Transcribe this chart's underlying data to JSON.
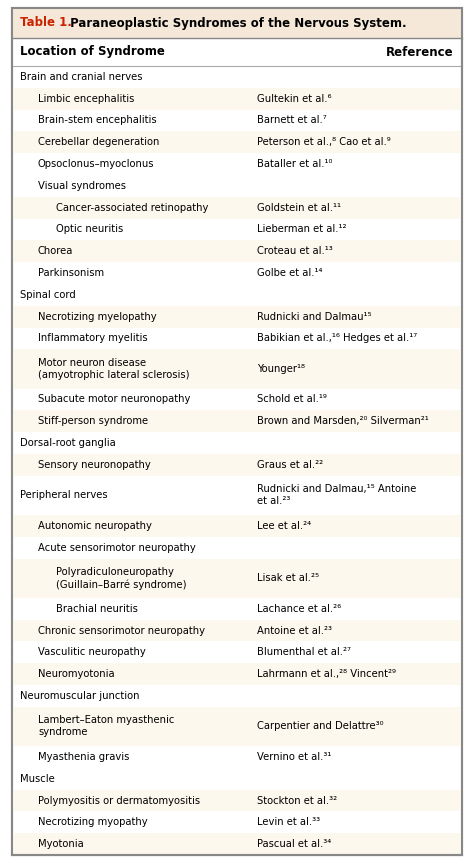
{
  "title_red": "Table 1.",
  "title_black": " Paraneoplastic Syndromes of the Nervous System.",
  "header_left": "Location of Syndrome",
  "header_right": "Reference",
  "bg_color": "#fdf8ee",
  "title_bg": "#f5e8d8",
  "border_color": "#999999",
  "title_red_color": "#cc2200",
  "rows": [
    {
      "indent": 0,
      "left": "Brain and cranial nerves",
      "right": "",
      "shaded": false
    },
    {
      "indent": 1,
      "left": "Limbic encephalitis",
      "right": "Gultekin et al.⁶",
      "shaded": true
    },
    {
      "indent": 1,
      "left": "Brain-stem encephalitis",
      "right": "Barnett et al.⁷",
      "shaded": false
    },
    {
      "indent": 1,
      "left": "Cerebellar degeneration",
      "right": "Peterson et al.,⁸ Cao et al.⁹",
      "shaded": true
    },
    {
      "indent": 1,
      "left": "Opsoclonus–myoclonus",
      "right": "Bataller et al.¹⁰",
      "shaded": false
    },
    {
      "indent": 1,
      "left": "Visual syndromes",
      "right": "",
      "shaded": false
    },
    {
      "indent": 2,
      "left": "Cancer-associated retinopathy",
      "right": "Goldstein et al.¹¹",
      "shaded": true
    },
    {
      "indent": 2,
      "left": "Optic neuritis",
      "right": "Lieberman et al.¹²",
      "shaded": false
    },
    {
      "indent": 1,
      "left": "Chorea",
      "right": "Croteau et al.¹³",
      "shaded": true
    },
    {
      "indent": 1,
      "left": "Parkinsonism",
      "right": "Golbe et al.¹⁴",
      "shaded": false
    },
    {
      "indent": 0,
      "left": "Spinal cord",
      "right": "",
      "shaded": false
    },
    {
      "indent": 1,
      "left": "Necrotizing myelopathy",
      "right": "Rudnicki and Dalmau¹⁵",
      "shaded": true
    },
    {
      "indent": 1,
      "left": "Inflammatory myelitis",
      "right": "Babikian et al.,¹⁶ Hedges et al.¹⁷",
      "shaded": false
    },
    {
      "indent": 1,
      "left": "Motor neuron disease\n(amyotrophic lateral sclerosis)",
      "right": "Younger¹⁸",
      "shaded": true
    },
    {
      "indent": 1,
      "left": "Subacute motor neuronopathy",
      "right": "Schold et al.¹⁹",
      "shaded": false
    },
    {
      "indent": 1,
      "left": "Stiff-person syndrome",
      "right": "Brown and Marsden,²⁰ Silverman²¹",
      "shaded": true
    },
    {
      "indent": 0,
      "left": "Dorsal-root ganglia",
      "right": "",
      "shaded": false
    },
    {
      "indent": 1,
      "left": "Sensory neuronopathy",
      "right": "Graus et al.²²",
      "shaded": true
    },
    {
      "indent": 0,
      "left": "Peripheral nerves",
      "right": "Rudnicki and Dalmau,¹⁵ Antoine\net al.²³",
      "shaded": false
    },
    {
      "indent": 1,
      "left": "Autonomic neuropathy",
      "right": "Lee et al.²⁴",
      "shaded": true
    },
    {
      "indent": 1,
      "left": "Acute sensorimotor neuropathy",
      "right": "",
      "shaded": false
    },
    {
      "indent": 2,
      "left": "Polyradiculoneuropathy\n(Guillain–Barré syndrome)",
      "right": "Lisak et al.²⁵",
      "shaded": true
    },
    {
      "indent": 2,
      "left": "Brachial neuritis",
      "right": "Lachance et al.²⁶",
      "shaded": false
    },
    {
      "indent": 1,
      "left": "Chronic sensorimotor neuropathy",
      "right": "Antoine et al.²³",
      "shaded": true
    },
    {
      "indent": 1,
      "left": "Vasculitic neuropathy",
      "right": "Blumenthal et al.²⁷",
      "shaded": false
    },
    {
      "indent": 1,
      "left": "Neuromyotonia",
      "right": "Lahrmann et al.,²⁸ Vincent²⁹",
      "shaded": true
    },
    {
      "indent": 0,
      "left": "Neuromuscular junction",
      "right": "",
      "shaded": false
    },
    {
      "indent": 1,
      "left": "Lambert–Eaton myasthenic\nsyndrome",
      "right": "Carpentier and Delattre³⁰",
      "shaded": true
    },
    {
      "indent": 1,
      "left": "Myasthenia gravis",
      "right": "Vernino et al.³¹",
      "shaded": false
    },
    {
      "indent": 0,
      "left": "Muscle",
      "right": "",
      "shaded": false
    },
    {
      "indent": 1,
      "left": "Polymyositis or dermatomyositis",
      "right": "Stockton et al.³²",
      "shaded": true
    },
    {
      "indent": 1,
      "left": "Necrotizing myopathy",
      "right": "Levin et al.³³",
      "shaded": false
    },
    {
      "indent": 1,
      "left": "Myotonia",
      "right": "Pascual et al.³⁴",
      "shaded": true
    }
  ]
}
